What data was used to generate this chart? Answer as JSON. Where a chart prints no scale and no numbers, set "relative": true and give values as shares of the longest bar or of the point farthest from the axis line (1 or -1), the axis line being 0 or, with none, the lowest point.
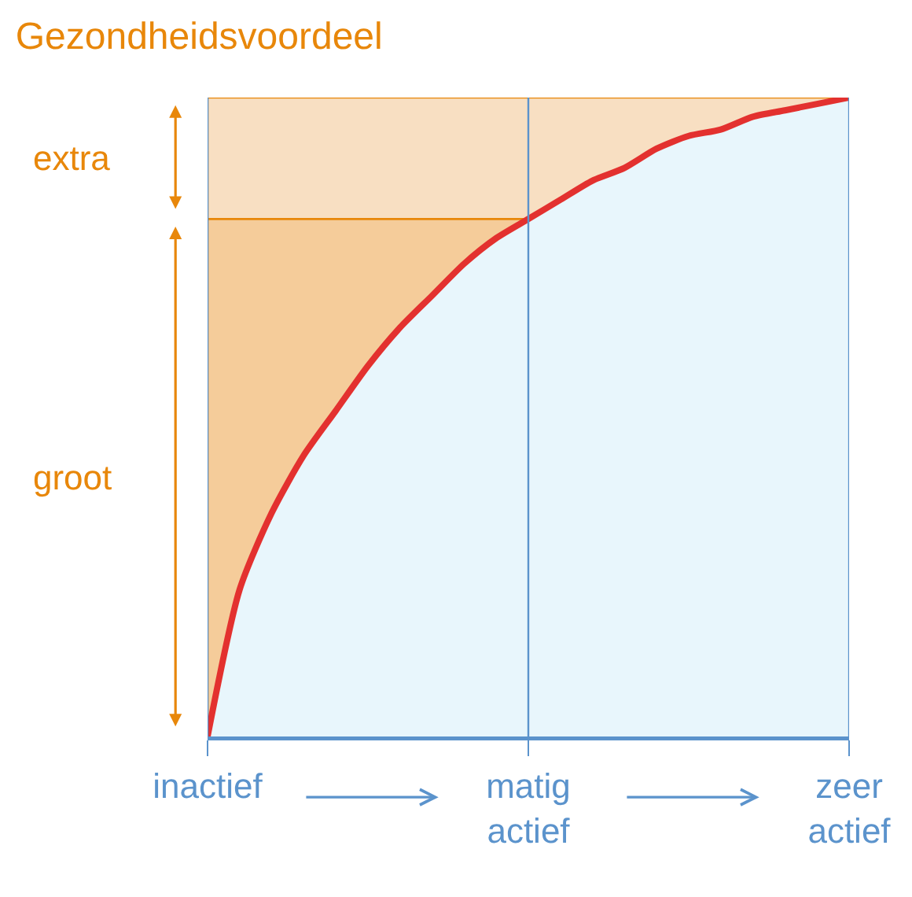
{
  "chart_data": {
    "type": "area",
    "title": "Gezondheidsvoordeel",
    "relative": true,
    "categories": [
      "inactief",
      null,
      null,
      null,
      null,
      null,
      null,
      null,
      null,
      null,
      "matig actief",
      null,
      null,
      null,
      null,
      null,
      null,
      null,
      null,
      null,
      "zeer actief"
    ],
    "series": [
      {
        "color": "#e3312f",
        "values": [
          0,
          0.23,
          0.35,
          0.44,
          0.51,
          0.58,
          0.64,
          0.69,
          0.74,
          0.78,
          0.81,
          0.84,
          0.87,
          0.89,
          0.92,
          0.94,
          0.95,
          0.97,
          0.98,
          0.99,
          1
        ]
      }
    ],
    "bands": [
      {
        "axis": "y",
        "from": 0,
        "to": 0.81,
        "label": "groot",
        "color": "#f5cc9a"
      },
      {
        "axis": "y",
        "from": 0.81,
        "to": 1,
        "label": "extra",
        "color": "#f8dfc2"
      }
    ],
    "line_style": "solid",
    "marker": "none"
  }
}
